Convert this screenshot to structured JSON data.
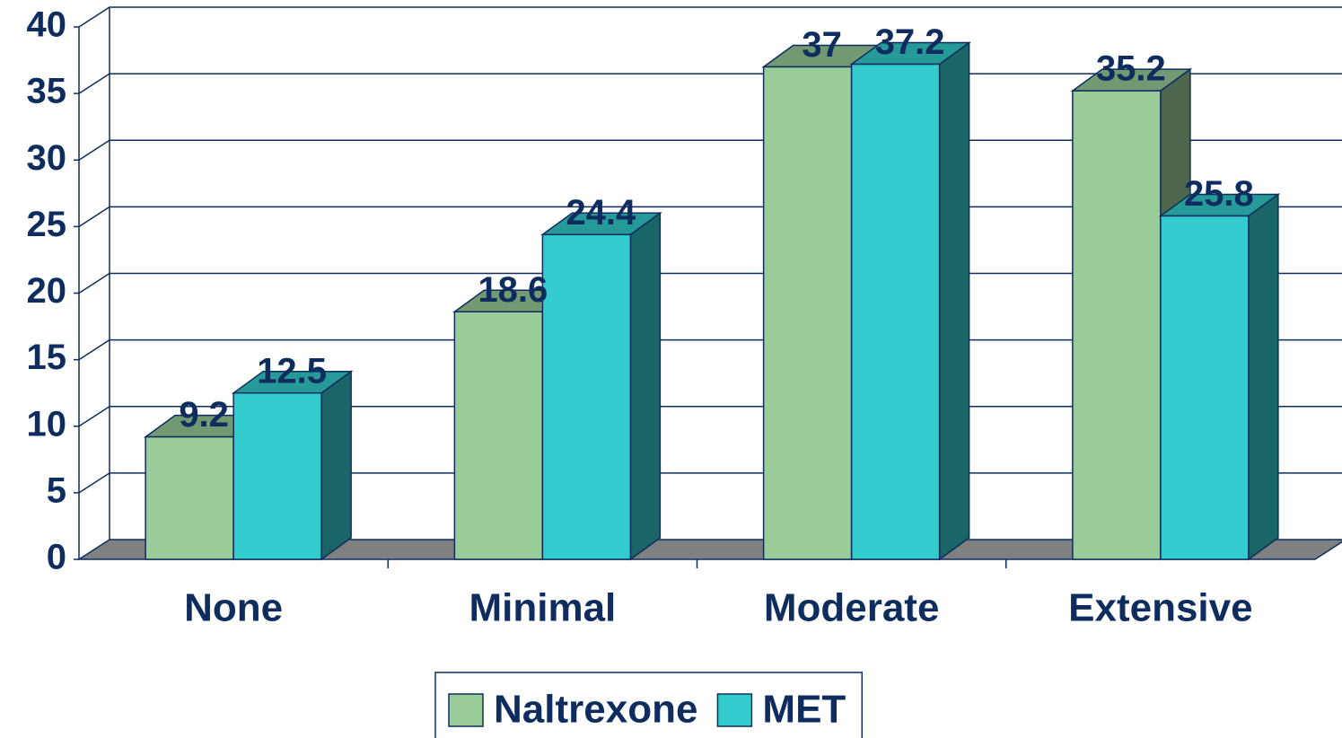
{
  "chart_data": {
    "type": "bar",
    "categories": [
      "None",
      "Minimal",
      "Moderate",
      "Extensive"
    ],
    "series": [
      {
        "name": "Naltrexone",
        "color": "#99cc99",
        "values": [
          9.2,
          18.6,
          37,
          35.2
        ]
      },
      {
        "name": "MET",
        "color": "#33cccc",
        "values": [
          12.5,
          24.4,
          37.2,
          25.8
        ]
      }
    ],
    "ylim": [
      0,
      40
    ],
    "yticks": [
      0,
      5,
      10,
      15,
      20,
      25,
      30,
      35,
      40
    ],
    "grid": true,
    "legend": "bottom"
  }
}
